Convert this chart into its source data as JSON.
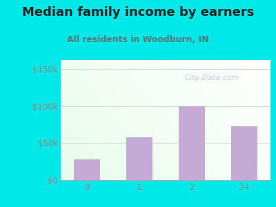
{
  "title": "Median family income by earners",
  "subtitle": "All residents in Woodburn, IN",
  "categories": [
    "0",
    "1",
    "2",
    "3+"
  ],
  "values": [
    28000,
    58000,
    100000,
    73000
  ],
  "bar_color": "#c4aad4",
  "title_color": "#222222",
  "subtitle_color": "#557777",
  "outer_bg_color": "#00e8e8",
  "yticks": [
    0,
    50000,
    100000,
    150000
  ],
  "ytick_labels": [
    "$0",
    "$50k",
    "$100k",
    "$150k"
  ],
  "ylim": [
    0,
    162000
  ],
  "xlim": [
    -0.5,
    3.5
  ],
  "watermark": "City-Data.com",
  "tick_color": "#888888",
  "grid_color": "#ccddcc",
  "title_fontsize": 13,
  "subtitle_fontsize": 9
}
